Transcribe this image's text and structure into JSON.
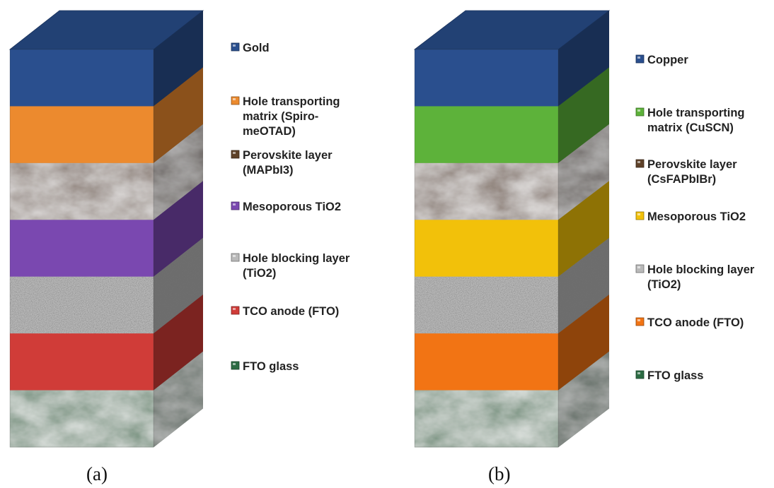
{
  "panels": [
    {
      "id": "a",
      "caption": "(a)",
      "layers": [
        {
          "legend": [
            "Gold"
          ],
          "color": "#2A4F8E",
          "texture": "plain"
        },
        {
          "legend": [
            "Hole transporting",
            "matrix (Spiro-",
            "meOTAD)"
          ],
          "color": "#EC8A2E",
          "texture": "plain"
        },
        {
          "legend": [
            "Perovskite layer",
            "(MAPbI3)"
          ],
          "color": "#5E4128",
          "texture": "marble"
        },
        {
          "legend": [
            "Mesoporous TiO2"
          ],
          "color": "#7A48B0",
          "texture": "plain"
        },
        {
          "legend": [
            "Hole blocking layer",
            "(TiO2)"
          ],
          "color": "#B9B9B9",
          "texture": "granite"
        },
        {
          "legend": [
            "TCO anode (FTO)"
          ],
          "color": "#D03C38",
          "texture": "plain"
        },
        {
          "legend": [
            "FTO glass"
          ],
          "color": "#2C6B43",
          "texture": "marble"
        }
      ]
    },
    {
      "id": "b",
      "caption": "(b)",
      "layers": [
        {
          "legend": [
            "Copper"
          ],
          "color": "#2A4F8E",
          "texture": "plain"
        },
        {
          "legend": [
            "Hole transporting",
            "matrix (CuSCN)"
          ],
          "color": "#5DB23A",
          "texture": "plain"
        },
        {
          "legend": [
            "Perovskite layer",
            "(CsFAPbIBr)"
          ],
          "color": "#5E4128",
          "texture": "marble"
        },
        {
          "legend": [
            "Mesoporous TiO2"
          ],
          "color": "#F2C10A",
          "texture": "plain"
        },
        {
          "legend": [
            "Hole blocking layer",
            "(TiO2)"
          ],
          "color": "#B9B9B9",
          "texture": "granite"
        },
        {
          "legend": [
            "TCO anode (FTO)"
          ],
          "color": "#F27414",
          "texture": "plain"
        },
        {
          "legend": [
            "FTO glass"
          ],
          "color": "#2C6B43",
          "texture": "marble"
        }
      ]
    }
  ]
}
